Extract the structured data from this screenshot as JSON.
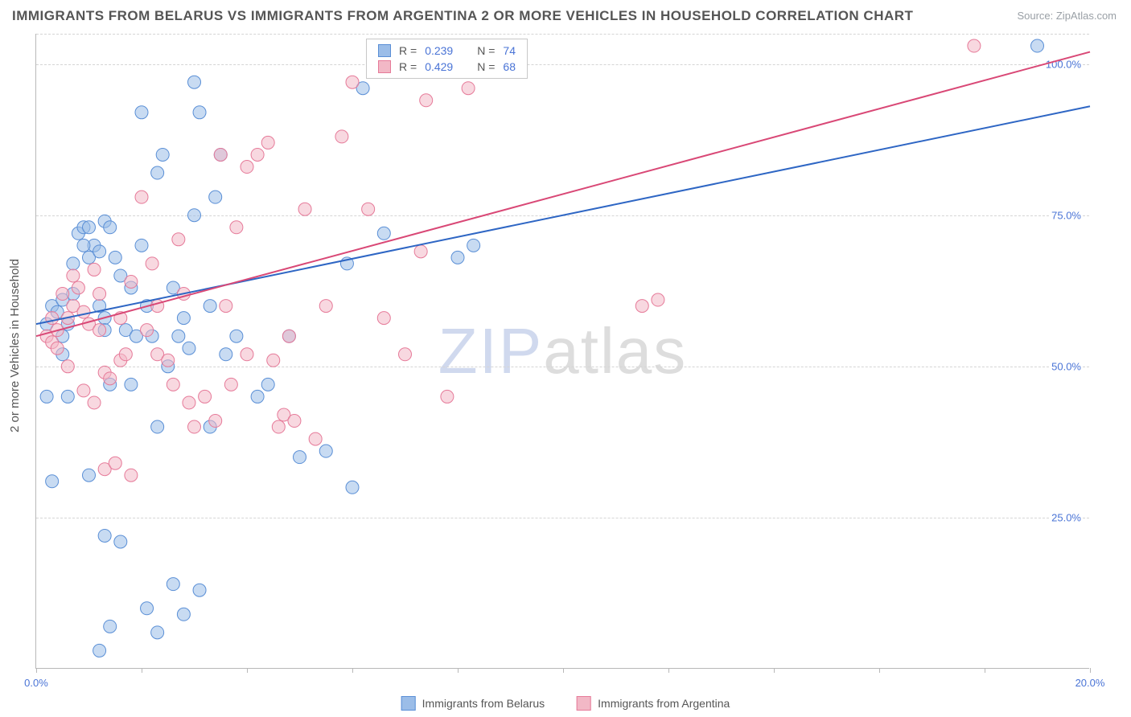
{
  "chart": {
    "type": "scatter",
    "title": "IMMIGRANTS FROM BELARUS VS IMMIGRANTS FROM ARGENTINA 2 OR MORE VEHICLES IN HOUSEHOLD CORRELATION CHART",
    "source": "Source: ZipAtlas.com",
    "watermark": "ZIPatlas",
    "ylabel": "2 or more Vehicles in Household",
    "background_color": "#ffffff",
    "grid_color": "#d5d5d5",
    "axis_color": "#b8b8b8",
    "label_color": "#555555",
    "tick_label_color": "#4a74d6",
    "xlim": [
      0,
      20
    ],
    "ylim": [
      0,
      105
    ],
    "xticks": [
      0,
      2,
      4,
      6,
      8,
      10,
      12,
      14,
      16,
      18,
      20
    ],
    "xtick_labels": {
      "0": "0.0%",
      "20": "20.0%"
    },
    "yticks": [
      25,
      50,
      75,
      100
    ],
    "ytick_labels": {
      "25": "25.0%",
      "50": "50.0%",
      "75": "75.0%",
      "100": "100.0%"
    },
    "marker_radius": 8,
    "marker_opacity": 0.55,
    "line_width": 2
  },
  "series": [
    {
      "name": "Immigrants from Belarus",
      "color_fill": "#9bbde8",
      "color_stroke": "#5a8fd6",
      "line_color": "#2e66c4",
      "R": "0.239",
      "N": "74",
      "trend": {
        "x1": 0,
        "y1": 57,
        "x2": 20,
        "y2": 93
      },
      "points": [
        [
          0.2,
          57
        ],
        [
          0.3,
          60
        ],
        [
          0.4,
          59
        ],
        [
          0.5,
          61
        ],
        [
          0.5,
          55
        ],
        [
          0.6,
          57
        ],
        [
          0.7,
          62
        ],
        [
          0.8,
          72
        ],
        [
          0.9,
          73
        ],
        [
          1.0,
          73
        ],
        [
          1.0,
          68
        ],
        [
          1.1,
          70
        ],
        [
          1.2,
          69
        ],
        [
          1.2,
          60
        ],
        [
          1.3,
          58
        ],
        [
          1.3,
          56
        ],
        [
          1.3,
          74
        ],
        [
          1.4,
          73
        ],
        [
          1.5,
          68
        ],
        [
          1.4,
          47
        ],
        [
          1.6,
          65
        ],
        [
          1.7,
          56
        ],
        [
          1.8,
          63
        ],
        [
          1.9,
          55
        ],
        [
          2.0,
          70
        ],
        [
          2.1,
          60
        ],
        [
          2.2,
          55
        ],
        [
          2.3,
          82
        ],
        [
          2.4,
          85
        ],
        [
          2.6,
          63
        ],
        [
          2.7,
          55
        ],
        [
          2.8,
          58
        ],
        [
          2.9,
          53
        ],
        [
          3.0,
          97
        ],
        [
          3.1,
          92
        ],
        [
          3.3,
          60
        ],
        [
          3.4,
          78
        ],
        [
          3.5,
          85
        ],
        [
          3.8,
          55
        ],
        [
          4.2,
          45
        ],
        [
          4.4,
          47
        ],
        [
          5.0,
          35
        ],
        [
          5.5,
          36
        ],
        [
          6.0,
          30
        ],
        [
          5.9,
          67
        ],
        [
          6.2,
          96
        ],
        [
          6.6,
          72
        ],
        [
          8.0,
          68
        ],
        [
          8.3,
          70
        ],
        [
          0.3,
          31
        ],
        [
          0.6,
          45
        ],
        [
          1.0,
          32
        ],
        [
          1.3,
          22
        ],
        [
          1.6,
          21
        ],
        [
          1.4,
          7
        ],
        [
          2.1,
          10
        ],
        [
          2.3,
          6
        ],
        [
          2.6,
          14
        ],
        [
          2.8,
          9
        ],
        [
          3.1,
          13
        ],
        [
          1.2,
          3
        ],
        [
          0.9,
          70
        ],
        [
          0.7,
          67
        ],
        [
          2.0,
          92
        ],
        [
          2.3,
          40
        ],
        [
          2.5,
          50
        ],
        [
          3.0,
          75
        ],
        [
          3.3,
          40
        ],
        [
          3.6,
          52
        ],
        [
          4.8,
          55
        ],
        [
          0.5,
          52
        ],
        [
          19.0,
          103
        ],
        [
          0.2,
          45
        ],
        [
          1.8,
          47
        ]
      ]
    },
    {
      "name": "Immigrants from Argentina",
      "color_fill": "#f2b8c6",
      "color_stroke": "#e67a99",
      "line_color": "#d94876",
      "R": "0.429",
      "N": "68",
      "trend": {
        "x1": 0,
        "y1": 55,
        "x2": 20,
        "y2": 102
      },
      "points": [
        [
          0.2,
          55
        ],
        [
          0.3,
          54
        ],
        [
          0.4,
          56
        ],
        [
          0.5,
          62
        ],
        [
          0.6,
          58
        ],
        [
          0.7,
          60
        ],
        [
          0.8,
          63
        ],
        [
          0.9,
          59
        ],
        [
          1.0,
          57
        ],
        [
          1.1,
          66
        ],
        [
          1.2,
          62
        ],
        [
          1.3,
          49
        ],
        [
          1.4,
          48
        ],
        [
          1.6,
          51
        ],
        [
          1.7,
          52
        ],
        [
          1.8,
          64
        ],
        [
          2.0,
          78
        ],
        [
          2.2,
          67
        ],
        [
          2.3,
          52
        ],
        [
          2.5,
          51
        ],
        [
          2.6,
          47
        ],
        [
          2.7,
          71
        ],
        [
          2.9,
          44
        ],
        [
          3.0,
          40
        ],
        [
          3.2,
          45
        ],
        [
          3.4,
          41
        ],
        [
          3.5,
          85
        ],
        [
          3.7,
          47
        ],
        [
          3.8,
          73
        ],
        [
          4.0,
          83
        ],
        [
          4.2,
          85
        ],
        [
          4.4,
          87
        ],
        [
          4.6,
          40
        ],
        [
          4.7,
          42
        ],
        [
          4.9,
          41
        ],
        [
          5.1,
          76
        ],
        [
          5.3,
          38
        ],
        [
          5.5,
          60
        ],
        [
          5.8,
          88
        ],
        [
          6.0,
          97
        ],
        [
          6.3,
          76
        ],
        [
          6.6,
          58
        ],
        [
          7.0,
          52
        ],
        [
          7.3,
          69
        ],
        [
          7.4,
          94
        ],
        [
          7.8,
          45
        ],
        [
          8.2,
          96
        ],
        [
          11.5,
          60
        ],
        [
          11.8,
          61
        ],
        [
          17.8,
          103
        ],
        [
          0.4,
          53
        ],
        [
          0.6,
          50
        ],
        [
          0.9,
          46
        ],
        [
          1.1,
          44
        ],
        [
          1.3,
          33
        ],
        [
          1.5,
          34
        ],
        [
          1.8,
          32
        ],
        [
          1.2,
          56
        ],
        [
          1.6,
          58
        ],
        [
          2.3,
          60
        ],
        [
          2.8,
          62
        ],
        [
          3.6,
          60
        ],
        [
          4.8,
          55
        ],
        [
          0.7,
          65
        ],
        [
          0.3,
          58
        ],
        [
          4.0,
          52
        ],
        [
          4.5,
          51
        ],
        [
          2.1,
          56
        ]
      ]
    }
  ],
  "stat_box": {
    "r_label": "R =",
    "n_label": "N ="
  }
}
